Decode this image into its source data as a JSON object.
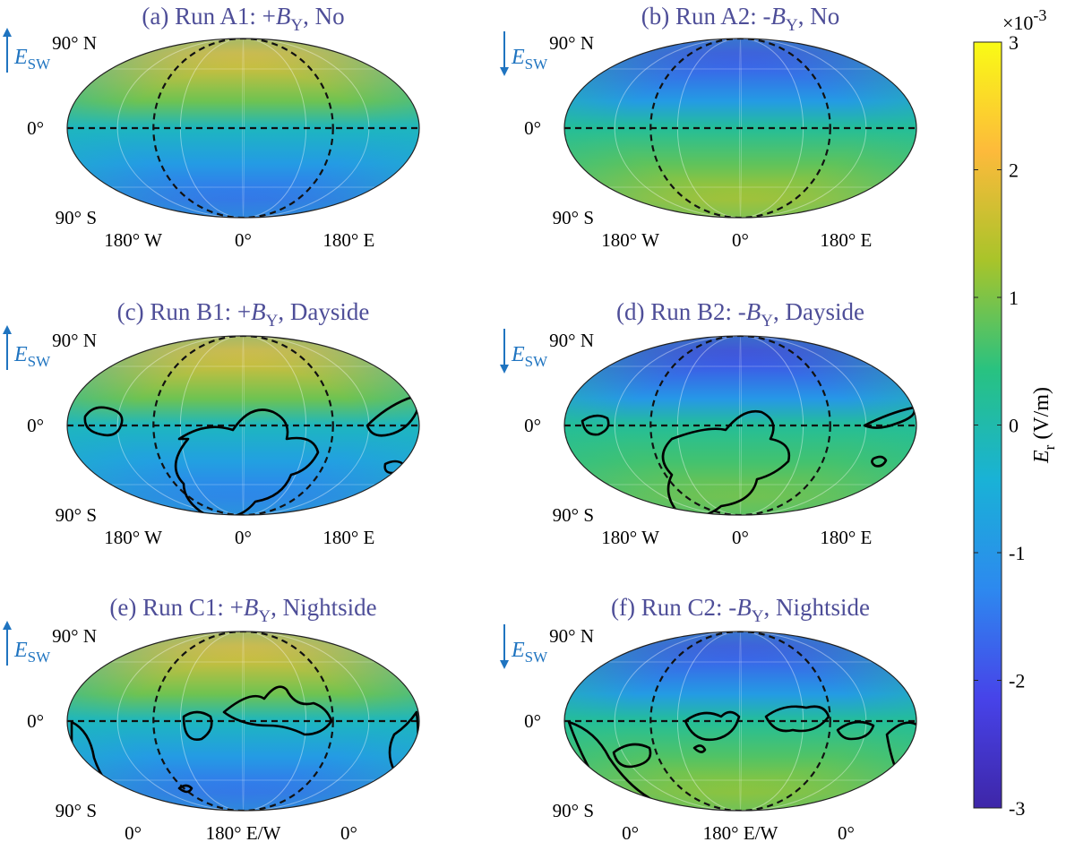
{
  "chart_data": {
    "type": "heatmap",
    "colorbar": {
      "label": "E",
      "label_sub": "r",
      "label_units": "(V/m)",
      "exponent": "×10",
      "exponent_power": "-3",
      "min": -3,
      "max": 3,
      "ticks": [
        -3,
        -2,
        -1,
        0,
        1,
        2,
        3
      ],
      "tick_labels": [
        "-3",
        "-2",
        "-1",
        "0",
        "1",
        "2",
        "3"
      ],
      "colormap": "parula",
      "colormap_stops": [
        "#3e26a8",
        "#4743e9",
        "#2d89ef",
        "#19b2d6",
        "#28c281",
        "#a8c42a",
        "#fdba3b",
        "#f9fb15"
      ]
    },
    "arrow_label": "E",
    "arrow_label_sub": "SW",
    "lat_labels": [
      "90° N",
      "0°",
      "90° S"
    ],
    "panels": [
      {
        "id": "a",
        "title": "(a) Run A1: +",
        "title_var": "B",
        "title_sub": "Y",
        "title_tail": ", No",
        "esw_direction": "up",
        "lon_labels": [
          "180° W",
          "0°",
          "180° E"
        ],
        "north_value": 2.0,
        "south_value": -1.6,
        "equator_value": -0.2,
        "contours": false
      },
      {
        "id": "b",
        "title": "(b) Run A2: -",
        "title_var": "B",
        "title_sub": "Y",
        "title_tail": ", No",
        "esw_direction": "down",
        "lon_labels": [
          "180° W",
          "0°",
          "180° E"
        ],
        "north_value": -2.0,
        "south_value": 1.4,
        "equator_value": 0.2,
        "contours": false
      },
      {
        "id": "c",
        "title": "(c) Run B1: +",
        "title_var": "B",
        "title_sub": "Y",
        "title_tail": ", Dayside",
        "esw_direction": "up",
        "lon_labels": [
          "180° W",
          "0°",
          "180° E"
        ],
        "north_value": 2.0,
        "south_value": -1.4,
        "equator_value": -0.2,
        "contours": true
      },
      {
        "id": "d",
        "title": "(d) Run B2: -",
        "title_var": "B",
        "title_sub": "Y",
        "title_tail": ", Dayside",
        "esw_direction": "down",
        "lon_labels": [
          "180° W",
          "0°",
          "180° E"
        ],
        "north_value": -2.2,
        "south_value": 1.0,
        "equator_value": 0.2,
        "contours": true
      },
      {
        "id": "e",
        "title": "(e) Run C1: +",
        "title_var": "B",
        "title_sub": "Y",
        "title_tail": ", Nightside",
        "esw_direction": "up",
        "lon_labels": [
          "0°",
          "180° E/W",
          "0°"
        ],
        "north_value": 2.0,
        "south_value": -1.6,
        "equator_value": -0.2,
        "contours": true
      },
      {
        "id": "f",
        "title": "(f) Run C2: -",
        "title_var": "B",
        "title_sub": "Y",
        "title_tail": ", Nightside",
        "esw_direction": "down",
        "lon_labels": [
          "0°",
          "180° E/W",
          "0°"
        ],
        "north_value": -2.0,
        "south_value": 1.2,
        "equator_value": 0.2,
        "contours": true
      }
    ]
  }
}
